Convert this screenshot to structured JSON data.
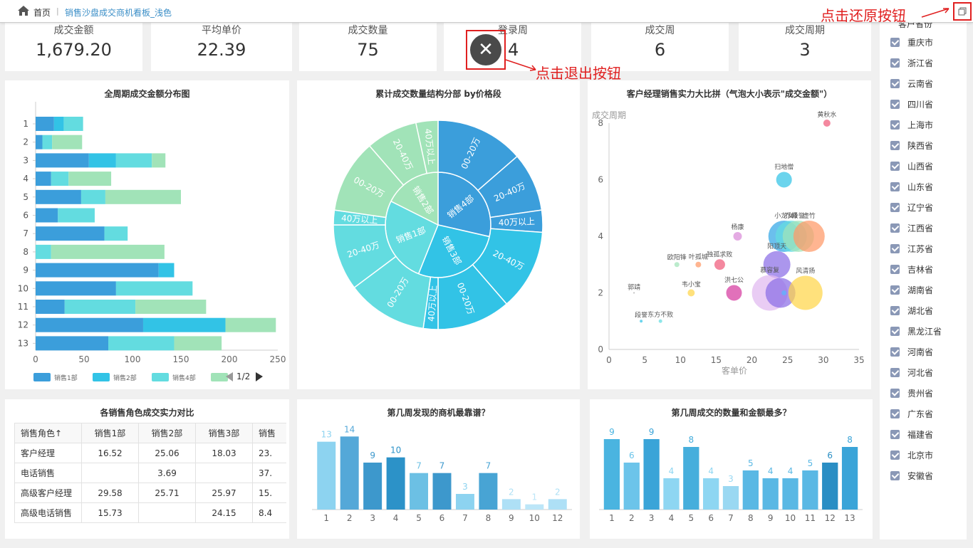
{
  "nav": {
    "home": "首页",
    "separator": "|",
    "breadcrumb": "销售沙盘成交商机看板_浅色"
  },
  "annotations": {
    "restore": "点击还原按钮",
    "exit": "点击退出按钮"
  },
  "kpis": [
    {
      "label": "成交金额",
      "value": "1,679.20"
    },
    {
      "label": "平均单价",
      "value": "22.39"
    },
    {
      "label": "成交数量",
      "value": "75"
    },
    {
      "label": "登录周",
      "value": "4"
    },
    {
      "label": "成交周",
      "value": "6"
    },
    {
      "label": "成交周期",
      "value": "3"
    }
  ],
  "exit_glyph": "✕",
  "colors": {
    "blue": "#3b9edb",
    "cyan": "#32c3e6",
    "teal": "#63dce0",
    "green": "#a1e3b8"
  },
  "stacked": {
    "title": "全周期成交金额分布图",
    "page": "1/2",
    "chart_data": {
      "type": "bar",
      "orientation": "horizontal",
      "stacked": true,
      "categories": [
        "1",
        "2",
        "3",
        "4",
        "5",
        "6",
        "7",
        "8",
        "9",
        "10",
        "11",
        "12",
        "13"
      ],
      "series": [
        {
          "name": "销售1部",
          "values": [
            19,
            7,
            55,
            16,
            47,
            23,
            71,
            0,
            127,
            83,
            30,
            111,
            75
          ]
        },
        {
          "name": "销售2部",
          "values": [
            10,
            0,
            28,
            0,
            0,
            0,
            0,
            0,
            16,
            0,
            0,
            85,
            0
          ]
        },
        {
          "name": "销售4部",
          "values": [
            20,
            10,
            37,
            18,
            25,
            38,
            24,
            16,
            0,
            79,
            73,
            0,
            68
          ]
        },
        {
          "name": "",
          "values": [
            0,
            31,
            14,
            44,
            78,
            0,
            0,
            117,
            0,
            0,
            73,
            52,
            49
          ]
        }
      ],
      "xticks": [
        "0",
        "50",
        "100",
        "150",
        "200",
        "250"
      ],
      "xlim": [
        0,
        250
      ],
      "grid": false,
      "legend_position": "bottom"
    }
  },
  "sunburst": {
    "title": "累计成交数量结构分部 by价格段",
    "inner": [
      {
        "label": "销售4部",
        "value": 26,
        "color": "#3b9edb"
      },
      {
        "label": "销售3部",
        "value": 25,
        "color": "#32c3e6"
      },
      {
        "label": "销售1部",
        "value": 24,
        "color": "#63dce0"
      },
      {
        "label": "销售2部",
        "value": 16,
        "color": "#a1e3b8"
      }
    ],
    "outer": [
      {
        "label": "00-20万",
        "value": 12,
        "color": "#3b9edb"
      },
      {
        "label": "20-40万",
        "value": 8,
        "color": "#3b9edb"
      },
      {
        "label": "40万以上",
        "value": 3,
        "color": "#3b9edb"
      },
      {
        "label": "20-40万",
        "value": 11,
        "color": "#32c3e6"
      },
      {
        "label": "00-20万",
        "value": 10,
        "color": "#32c3e6"
      },
      {
        "label": "40万以上",
        "value": 2,
        "color": "#32c3e6"
      },
      {
        "label": "00-20万",
        "value": 11,
        "color": "#63dce0"
      },
      {
        "label": "20-40万",
        "value": 9,
        "color": "#63dce0"
      },
      {
        "label": "40万以上",
        "value": 2,
        "color": "#63dce0"
      },
      {
        "label": "00-20万",
        "value": 10,
        "color": "#a1e3b8"
      },
      {
        "label": "20-40万",
        "value": 7,
        "color": "#a1e3b8"
      },
      {
        "label": "40万以上",
        "value": 3,
        "color": "#a1e3b8"
      }
    ]
  },
  "bubble": {
    "title": "客户经理销售实力大比拼（气泡大小表示\"成交金额\"）",
    "chart_data": {
      "type": "scatter",
      "xlabel": "客单价",
      "ylabel": "成交周期",
      "xlim": [
        0,
        35
      ],
      "ylim": [
        0,
        8
      ],
      "xticks": [
        "0",
        "5",
        "10",
        "15",
        "20",
        "25",
        "30",
        "35"
      ],
      "yticks": [
        "0",
        "2",
        "4",
        "6",
        "8"
      ],
      "points": [
        {
          "name": "黄秋水",
          "x": 30.5,
          "y": 8,
          "size": 10,
          "color": "#f05a7a"
        },
        {
          "name": "扫地僧",
          "x": 24.5,
          "y": 6,
          "size": 22,
          "color": "#32c3e6"
        },
        {
          "name": "杨康",
          "x": 18,
          "y": 4,
          "size": 12,
          "color": "#d98ad8"
        },
        {
          "name": "小龙女",
          "x": 24.5,
          "y": 4,
          "size": 44,
          "color": "#32a6e6"
        },
        {
          "name": "乔峰",
          "x": 25.5,
          "y": 4,
          "size": 44,
          "color": "#63dce0"
        },
        {
          "name": "段誉",
          "x": 26.5,
          "y": 4,
          "size": 44,
          "color": "#a1e3b8"
        },
        {
          "name": "虚竹",
          "x": 28,
          "y": 4,
          "size": 44,
          "color": "#ff9966"
        },
        {
          "name": "欧阳锋",
          "x": 9.5,
          "y": 3,
          "size": 7,
          "color": "#a1e3b8"
        },
        {
          "name": "叶孤城",
          "x": 12.5,
          "y": 3,
          "size": 8,
          "color": "#ff9966"
        },
        {
          "name": "独孤求败",
          "x": 15.5,
          "y": 3,
          "size": 15,
          "color": "#f05a7a"
        },
        {
          "name": "阳顶天",
          "x": 23.5,
          "y": 3,
          "size": 38,
          "color": "#8a6ee6"
        },
        {
          "name": "韦小宝",
          "x": 11.5,
          "y": 2,
          "size": 10,
          "color": "#ffd54a"
        },
        {
          "name": "洪七公",
          "x": 17.5,
          "y": 2,
          "size": 22,
          "color": "#d63aa0"
        },
        {
          "name": "郭靖",
          "x": 3.5,
          "y": 2,
          "size": 2,
          "color": "#999999"
        },
        {
          "name": "慕容复",
          "x": 22.5,
          "y": 2,
          "size": 50,
          "color": "#e0b8f0"
        },
        {
          "name": "",
          "x": 24,
          "y": 2,
          "size": 42,
          "color": "#8a6ee6"
        },
        {
          "name": "风清扬",
          "x": 27.5,
          "y": 2,
          "size": 48,
          "color": "#ffd54a"
        },
        {
          "name": "",
          "x": 24.5,
          "y": 2,
          "size": 7,
          "color": "#5ab5ff"
        },
        {
          "name": "段誉",
          "x": 4.5,
          "y": 1,
          "size": 4,
          "color": "#32c3e6"
        },
        {
          "name": "东方不败",
          "x": 7.2,
          "y": 1,
          "size": 5,
          "color": "#63dce0"
        }
      ]
    }
  },
  "table": {
    "title": "各销售角色成交实力对比",
    "headers": [
      "销售角色↑",
      "销售1部",
      "销售2部",
      "销售3部",
      "销售"
    ],
    "rows": [
      [
        "客户经理",
        "16.52",
        "25.06",
        "18.03",
        "23."
      ],
      [
        "电话销售",
        "",
        "3.69",
        "",
        "37."
      ],
      [
        "高级客户经理",
        "29.58",
        "25.71",
        "25.97",
        "15."
      ],
      [
        "高级电话销售",
        "15.73",
        "",
        "24.15",
        "8.4"
      ]
    ]
  },
  "found": {
    "title": "第几周发现的商机最靠谱？",
    "chart_data": {
      "type": "bar",
      "categories": [
        "1",
        "2",
        "3",
        "4",
        "5",
        "6",
        "7",
        "8",
        "9",
        "10",
        "12"
      ],
      "values": [
        13,
        14,
        9,
        10,
        7,
        7,
        3,
        7,
        2,
        1,
        2
      ],
      "ylim": [
        0,
        15
      ],
      "colors": [
        "#8dd3f0",
        "#54a8d8",
        "#3d98cc",
        "#2c92c8",
        "#6cc0e4",
        "#3d98cc",
        "#8dd3f0",
        "#48a4d4",
        "#aee0f6",
        "#bce6f8",
        "#aee0f6"
      ]
    }
  },
  "closed": {
    "title": "第几周成交的数量和金额最多？",
    "chart_data": {
      "type": "bar",
      "categories": [
        "1",
        "2",
        "3",
        "4",
        "5",
        "6",
        "7",
        "8",
        "9",
        "10",
        "11",
        "12",
        "13"
      ],
      "values": [
        9,
        6,
        9,
        4,
        8,
        4,
        3,
        5,
        4,
        4,
        5,
        6,
        8
      ],
      "ylim": [
        0,
        10
      ],
      "colors": [
        "#4ab4e0",
        "#6cc4ea",
        "#3aa4d8",
        "#8ed6f2",
        "#46aedc",
        "#8ed6f2",
        "#9ad8f2",
        "#5ab8e4",
        "#5ab8e4",
        "#5ab8e4",
        "#5ab8e4",
        "#2a8ec4",
        "#3aa4d8"
      ]
    }
  },
  "provinces": {
    "title": "客户省份",
    "items": [
      "重庆市",
      "浙江省",
      "云南省",
      "四川省",
      "上海市",
      "陕西省",
      "山西省",
      "山东省",
      "辽宁省",
      "江西省",
      "江苏省",
      "吉林省",
      "湖南省",
      "湖北省",
      "黑龙江省",
      "河南省",
      "河北省",
      "贵州省",
      "广东省",
      "福建省",
      "北京市",
      "安徽省"
    ]
  }
}
